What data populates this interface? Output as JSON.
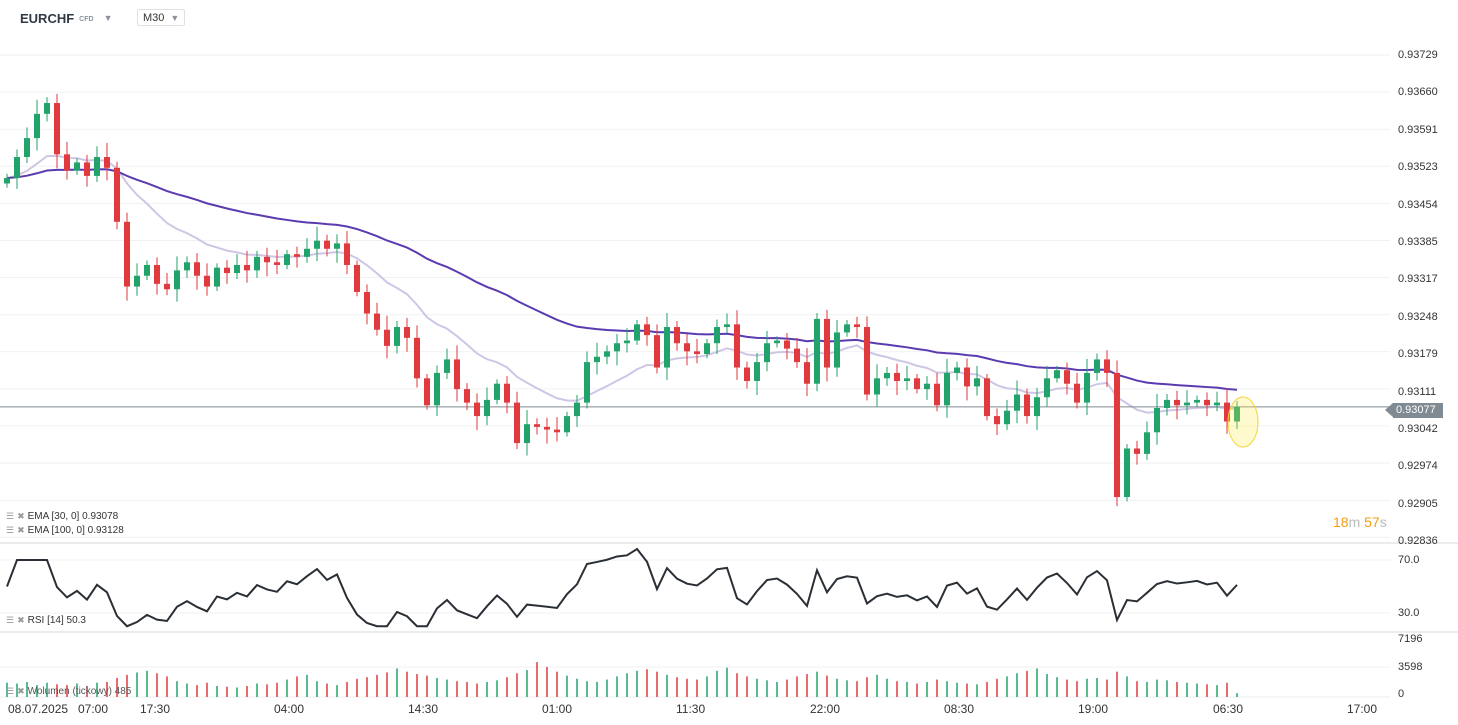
{
  "header": {
    "symbol": "EURCHF",
    "type": "CFD",
    "timeframe": "M30"
  },
  "price_axis": [
    "0.93729",
    "0.93660",
    "0.93591",
    "0.93523",
    "0.93454",
    "0.93385",
    "0.93317",
    "0.93248",
    "0.93179",
    "0.93111",
    "0.93042",
    "0.92974",
    "0.92905",
    "0.92836"
  ],
  "current_price": "0.93077",
  "timer": {
    "min": "18",
    "m": "m",
    "sec": "57",
    "s": "s"
  },
  "legend": {
    "ema30": "EMA [30, 0] 0.93078",
    "ema100": "EMA [100, 0] 0.93128",
    "rsi": "RSI [14] 50.3",
    "volume": "Wolumen (tickowy) 485"
  },
  "rsi_axis": [
    "70.0",
    "30.0"
  ],
  "volume_axis": [
    "7196",
    "3598",
    "0"
  ],
  "time_axis": [
    "08.07.2025",
    "07:00",
    "17:30",
    "04:00",
    "14:30",
    "01:00",
    "11:30",
    "22:00",
    "08:30",
    "19:00",
    "06:30",
    "17:00"
  ],
  "colors": {
    "up": "#22a36b",
    "down": "#e03a3e",
    "ema30": "#cfc6e6",
    "ema100": "#5b3bb0",
    "rsi": "#2a2f36"
  },
  "chart_data": {
    "type": "candlestick",
    "ylim": [
      0.92836,
      0.93729
    ],
    "closes": [
      0.93501,
      0.9354,
      0.93575,
      0.9362,
      0.9364,
      0.93545,
      0.93515,
      0.9353,
      0.93505,
      0.9354,
      0.9352,
      0.9342,
      0.933,
      0.9332,
      0.9334,
      0.93305,
      0.93295,
      0.9333,
      0.93345,
      0.9332,
      0.933,
      0.93335,
      0.93325,
      0.9334,
      0.9333,
      0.93355,
      0.93345,
      0.9334,
      0.9336,
      0.93355,
      0.9337,
      0.93385,
      0.9337,
      0.9338,
      0.9334,
      0.9329,
      0.9325,
      0.9322,
      0.9319,
      0.93225,
      0.93205,
      0.9313,
      0.9308,
      0.9314,
      0.93165,
      0.9311,
      0.93085,
      0.9306,
      0.9309,
      0.9312,
      0.93085,
      0.9301,
      0.93045,
      0.9304,
      0.93035,
      0.9303,
      0.9306,
      0.93085,
      0.9316,
      0.9317,
      0.9318,
      0.93195,
      0.932,
      0.9323,
      0.9321,
      0.9315,
      0.93225,
      0.93195,
      0.9318,
      0.93175,
      0.93195,
      0.93225,
      0.9323,
      0.9315,
      0.93125,
      0.9316,
      0.93195,
      0.932,
      0.93185,
      0.9316,
      0.9312,
      0.9324,
      0.9315,
      0.93215,
      0.9323,
      0.93225,
      0.931,
      0.9313,
      0.9314,
      0.93125,
      0.9313,
      0.9311,
      0.9312,
      0.9308,
      0.9314,
      0.9315,
      0.93115,
      0.9313,
      0.9306,
      0.93045,
      0.9307,
      0.931,
      0.9306,
      0.93095,
      0.9313,
      0.93145,
      0.9312,
      0.93085,
      0.9314,
      0.93165,
      0.9314,
      0.9291,
      0.93,
      0.9299,
      0.9303,
      0.93075,
      0.9309,
      0.9308,
      0.93085,
      0.9309,
      0.9308,
      0.93085,
      0.9305,
      0.93077
    ],
    "volumes": [
      1800,
      1700,
      1900,
      1500,
      1800,
      1600,
      1500,
      1700,
      1400,
      1800,
      1900,
      2400,
      2800,
      3100,
      3300,
      3000,
      2600,
      2000,
      1700,
      1500,
      1800,
      1400,
      1300,
      1200,
      1400,
      1700,
      1600,
      1800,
      2200,
      2600,
      2800,
      2000,
      1700,
      1500,
      1900,
      2300,
      2500,
      2800,
      3100,
      3600,
      3200,
      2900,
      2700,
      2400,
      2200,
      2000,
      1900,
      1700,
      1900,
      2100,
      2500,
      3000,
      3400,
      4400,
      3800,
      3200,
      2700,
      2300,
      2000,
      1900,
      2200,
      2600,
      3000,
      3300,
      3500,
      3200,
      2800,
      2500,
      2300,
      2200,
      2600,
      3300,
      3700,
      3000,
      2600,
      2300,
      2100,
      1900,
      2200,
      2600,
      2900,
      3200,
      2700,
      2300,
      2100,
      2000,
      2500,
      2800,
      2300,
      2000,
      1900,
      1700,
      1900,
      2200,
      2000,
      1800,
      1700,
      1600,
      1900,
      2300,
      2600,
      3000,
      3300,
      3600,
      2900,
      2500,
      2200,
      2000,
      2300,
      2400,
      2200,
      3200,
      2600,
      2000,
      1900,
      2200,
      2100,
      1900,
      1800,
      1700,
      1600,
      1500,
      1800,
      485
    ]
  }
}
